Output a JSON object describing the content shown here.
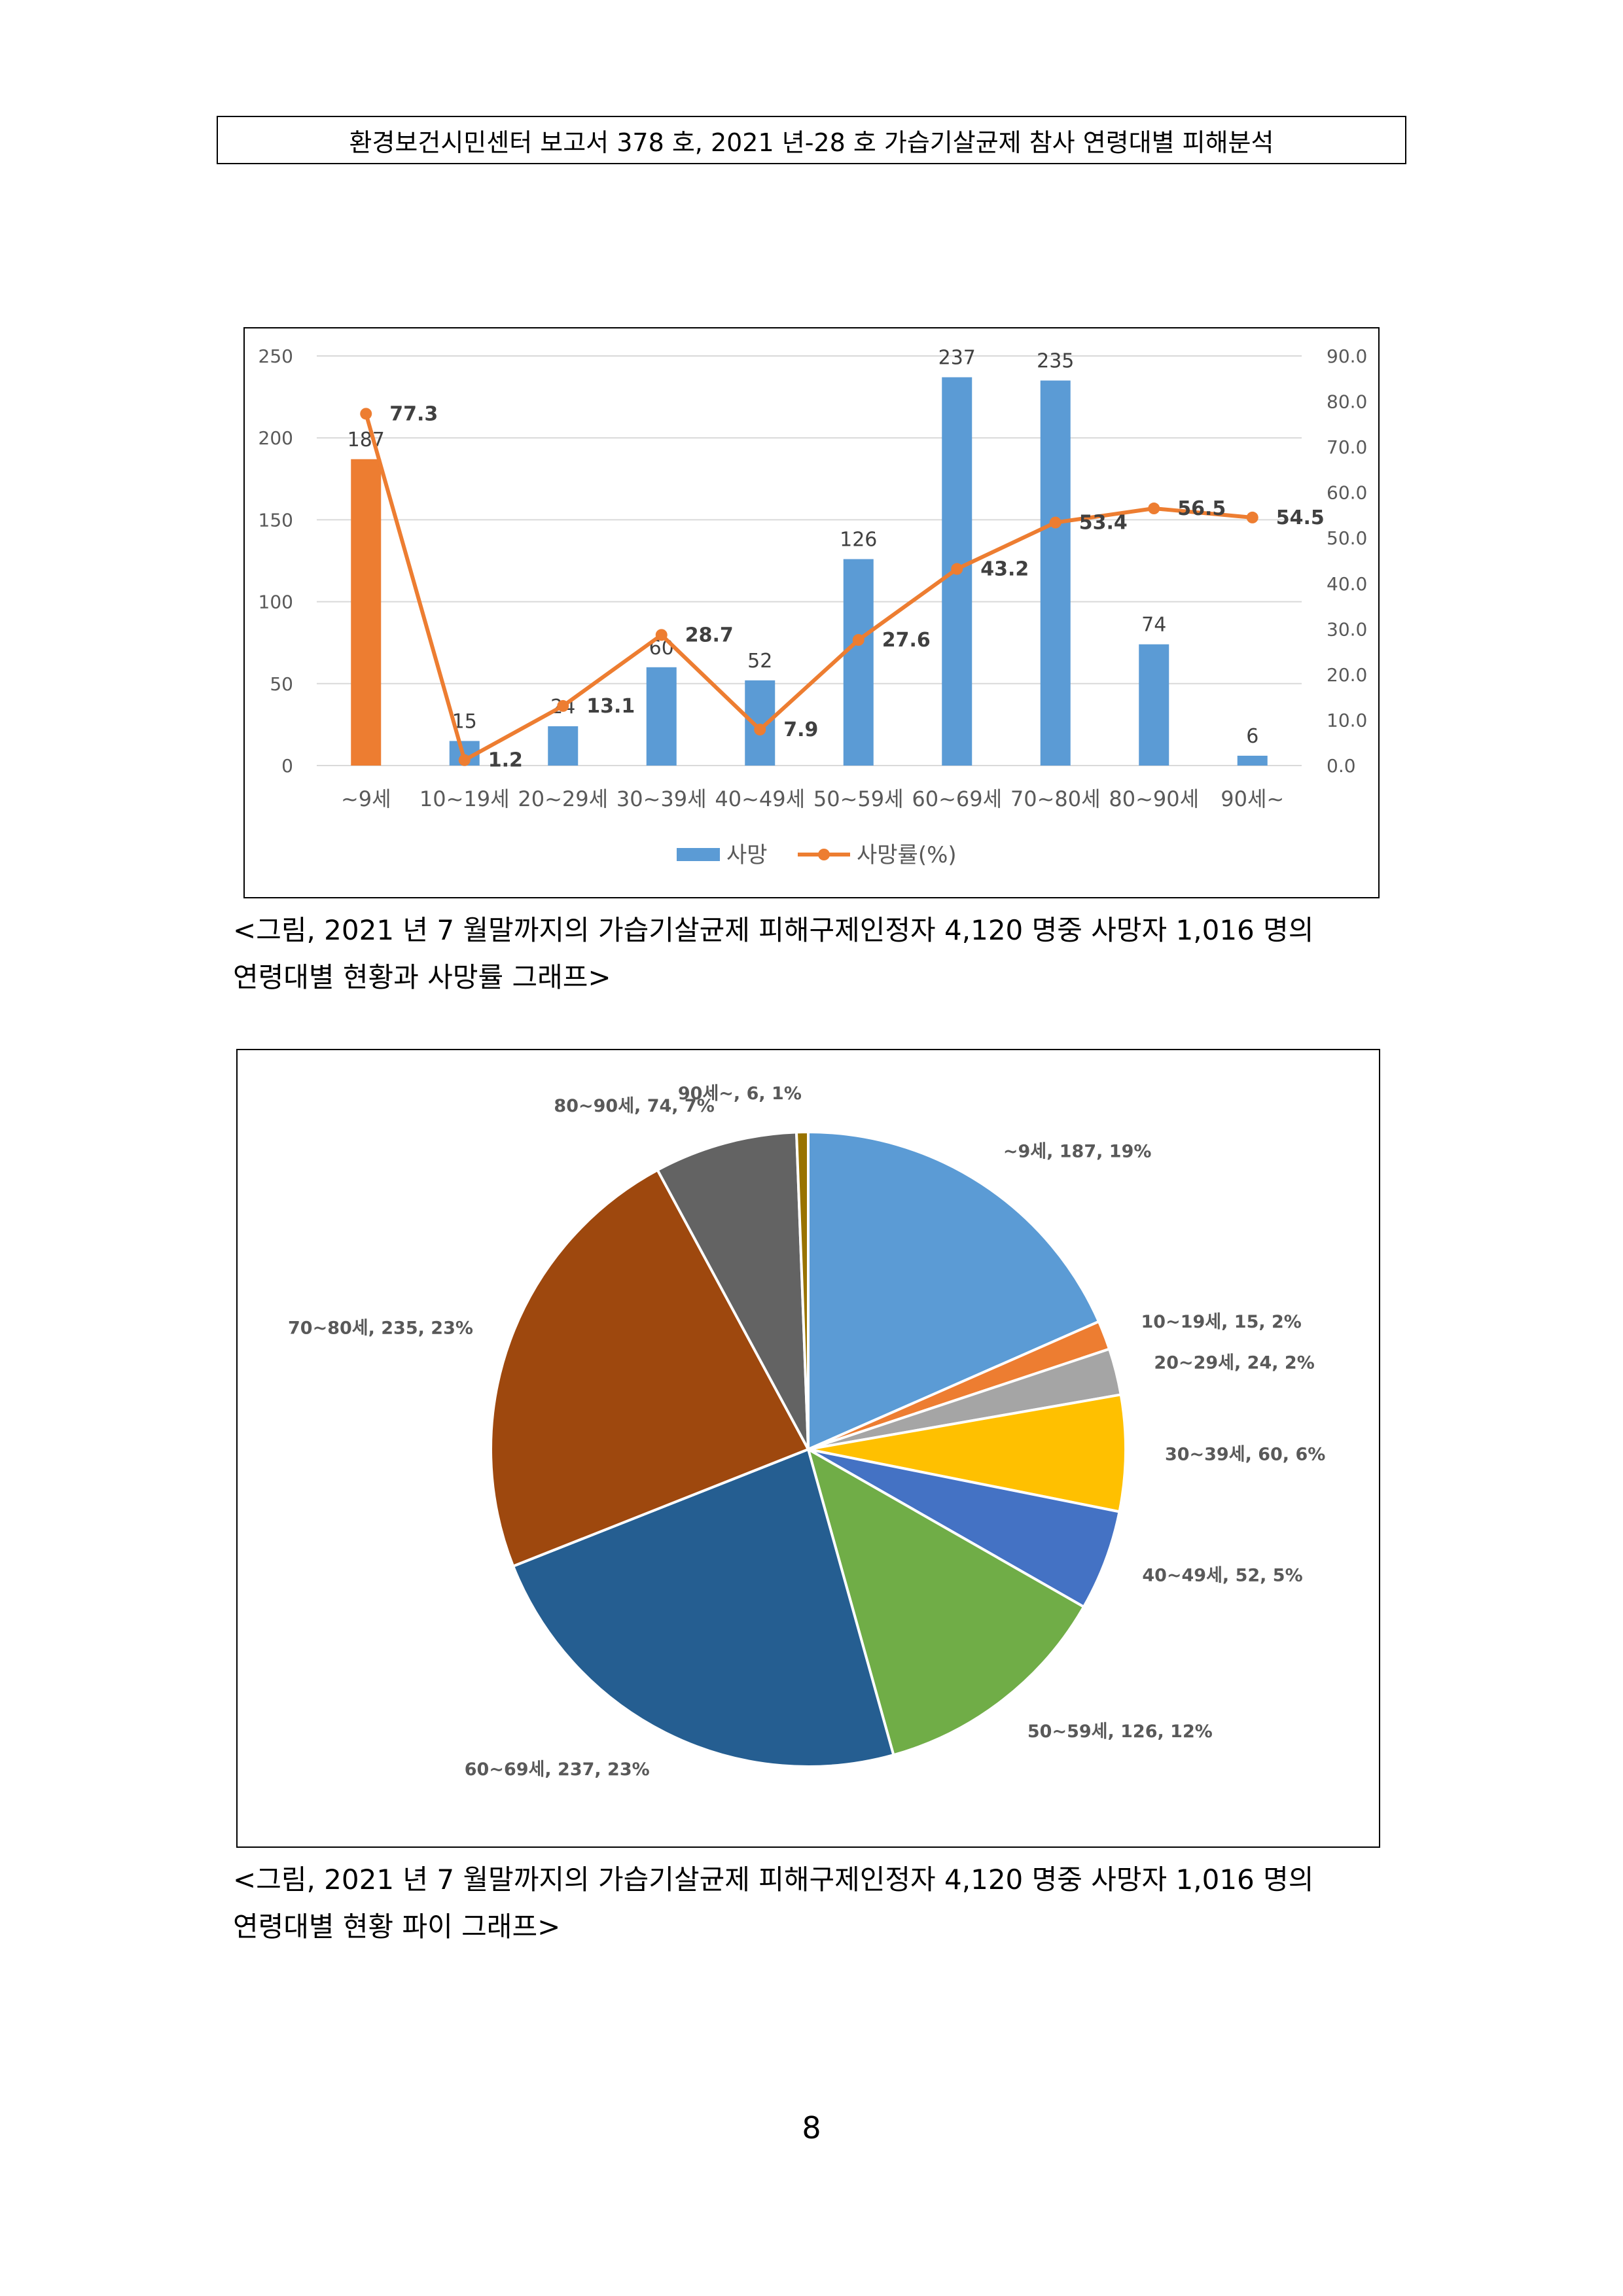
{
  "header": {
    "title": "환경보건시민센터 보고서 378 호, 2021 년-28 호  가습기살균제  참사  연령대별  피해분석"
  },
  "figure1": {
    "caption_line1": "<그림, 2021 년 7 월말까지의  가습기살균제  피해구제인정자  4,120 명중  사망자  1,016 명의",
    "caption_line2": "연령대별  현황과  사망률  그래프>"
  },
  "figure2": {
    "caption_line1": "<그림, 2021 년 7 월말까지의  가습기살균제  피해구제인정자  4,120 명중  사망자  1,016 명의",
    "caption_line2": "연령대별  현황  파이  그래프>"
  },
  "page_number": "8",
  "colors": {
    "bar_blue": "#5b9bd5",
    "bar_orange": "#ed7d31",
    "line_orange": "#ed7d31",
    "grid": "#d9d9d9"
  },
  "chart_data": [
    {
      "type": "bar",
      "categories": [
        "~9세",
        "10~19세",
        "20~29세",
        "30~39세",
        "40~49세",
        "50~59세",
        "60~69세",
        "70~80세",
        "80~90세",
        "90세~"
      ],
      "series": [
        {
          "name": "사망",
          "kind": "bar",
          "axis": "left",
          "values": [
            187,
            15,
            24,
            60,
            52,
            126,
            237,
            235,
            74,
            6
          ],
          "colors": [
            "#ed7d31",
            "#5b9bd5",
            "#5b9bd5",
            "#5b9bd5",
            "#5b9bd5",
            "#5b9bd5",
            "#5b9bd5",
            "#5b9bd5",
            "#5b9bd5",
            "#5b9bd5"
          ]
        },
        {
          "name": "사망률(%)",
          "kind": "line",
          "axis": "right",
          "values": [
            77.3,
            1.2,
            13.1,
            28.7,
            7.9,
            27.6,
            43.2,
            53.4,
            56.5,
            54.5
          ]
        }
      ],
      "y_left_ticks": [
        "0",
        "50",
        "100",
        "150",
        "200",
        "250"
      ],
      "y_left_range": [
        0,
        250
      ],
      "y_right_ticks": [
        "0.0",
        "10.0",
        "20.0",
        "30.0",
        "40.0",
        "50.0",
        "60.0",
        "70.0",
        "80.0",
        "90.0"
      ],
      "y_right_range": [
        0,
        90
      ],
      "grid": true,
      "legend_position": "bottom"
    },
    {
      "type": "pie",
      "slices": [
        {
          "label": "~9세, 187, 19%",
          "value": 187,
          "color": "#5b9bd5"
        },
        {
          "label": "10~19세, 15, 2%",
          "value": 15,
          "color": "#ed7d31"
        },
        {
          "label": "20~29세, 24, 2%",
          "value": 24,
          "color": "#a5a5a5"
        },
        {
          "label": "30~39세, 60, 6%",
          "value": 60,
          "color": "#ffc000"
        },
        {
          "label": "40~49세, 52, 5%",
          "value": 52,
          "color": "#4472c4"
        },
        {
          "label": "50~59세, 126, 12%",
          "value": 126,
          "color": "#70ad47"
        },
        {
          "label": "60~69세, 237, 23%",
          "value": 237,
          "color": "#255e91"
        },
        {
          "label": "70~80세, 235, 23%",
          "value": 235,
          "color": "#9e480e"
        },
        {
          "label": "80~90세, 74, 7%",
          "value": 74,
          "color": "#636363"
        },
        {
          "label": "90세~, 6, 1%",
          "value": 6,
          "color": "#997300"
        }
      ]
    }
  ]
}
